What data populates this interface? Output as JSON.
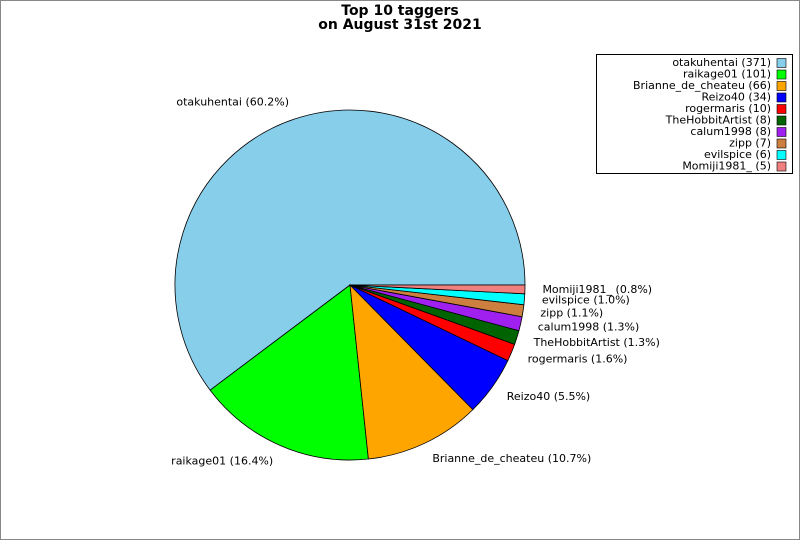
{
  "chart_data": {
    "type": "pie",
    "title": [
      "Top 10 taggers",
      "on August 31st 2021"
    ],
    "values": [
      60.2,
      16.4,
      10.7,
      5.5,
      1.6,
      1.3,
      1.3,
      1.1,
      1.0,
      0.8
    ],
    "value_labels": [
      "otakuhentai (60.2%)",
      "raikage01 (16.4%)",
      "Brianne_de_cheateu (10.7%)",
      "Reizo40 (5.5%)",
      "rogermaris (1.6%)",
      "TheHobbitArtist (1.3%)",
      "calum1998 (1.3%)",
      "zipp (1.1%)",
      "evilspice (1.0%)",
      "Momiji1981_ (0.8%)"
    ],
    "legend": [
      "otakuhentai (371)",
      "raikage01 (101)",
      "Brianne_de_cheateu (66)",
      "Reizo40 (34)",
      "rogermaris (10)",
      "TheHobbitArtist (8)",
      "calum1998 (8)",
      "zipp (7)",
      "evilspice (6)",
      "Momiji1981_ (5)"
    ],
    "colors": [
      "#87ceeb",
      "#00ff00",
      "#ffa500",
      "#0000ff",
      "#ff0000",
      "#006400",
      "#a020f0",
      "#cd7f3f",
      "#00ffff",
      "#f08080"
    ],
    "legend_position": "upper right"
  }
}
